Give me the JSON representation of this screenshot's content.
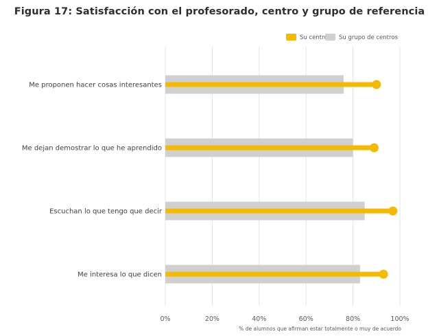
{
  "chart_data": {
    "type": "bar",
    "orientation": "horizontal",
    "title": "Figura 17: Satisfacción con el profesorado, centro y grupo de referencia",
    "categories": [
      "Me proponen hacer cosas interesantes",
      "Me dejan demostrar lo que he aprendido",
      "Escuchan lo que tengo que decir",
      "Me interesa lo que dicen"
    ],
    "series": [
      {
        "name": "Su centro",
        "color": "#F5BA00",
        "marker": "lollipop",
        "values": [
          90,
          89,
          97,
          93
        ]
      },
      {
        "name": "Su grupo de centros",
        "color": "#D0D0D0",
        "marker": "bar",
        "values": [
          76,
          80,
          85,
          83
        ]
      }
    ],
    "xlim": [
      0,
      100
    ],
    "xticks": [
      "0%",
      "20%",
      "40%",
      "60%",
      "80%",
      "100%"
    ],
    "xlabel": "% de alumnos que afirman estar totalmente o muy de acuerdo",
    "ylabel": "",
    "legend_position": "top-right",
    "grid": "vertical"
  }
}
